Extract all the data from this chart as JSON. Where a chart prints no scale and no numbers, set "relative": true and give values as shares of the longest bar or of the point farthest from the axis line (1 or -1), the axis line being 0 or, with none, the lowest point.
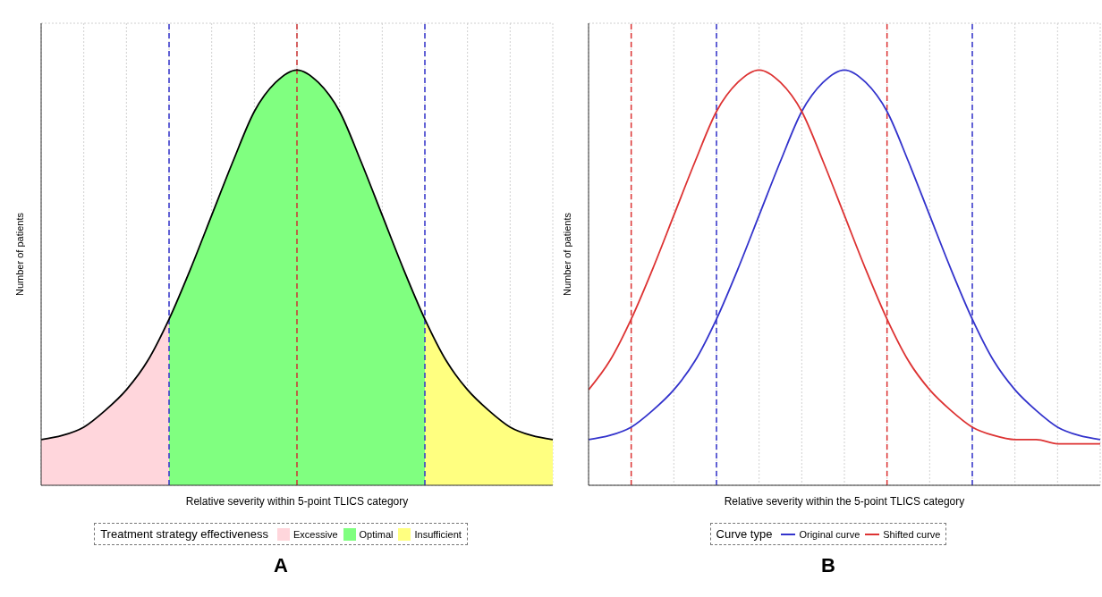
{
  "chart_data": [
    {
      "type": "area",
      "relative": true,
      "xlabel": "Relative severity within 5-point TLICS category",
      "ylabel": "Number of patients",
      "legend_title": "Treatment strategy effectiveness",
      "legend": "bottom",
      "grid": true,
      "marker": "none",
      "annotations": [
        "A"
      ],
      "categories": [
        null,
        null,
        null,
        null,
        null,
        null,
        null,
        null,
        null,
        null,
        null,
        null,
        null,
        null,
        null,
        null,
        null,
        null,
        null,
        null,
        null,
        null,
        null,
        null,
        null
      ],
      "series": [
        {
          "name": "Excessive",
          "color": "#ffd6dc",
          "values": [
            0.11,
            0.12,
            0.14,
            0.18,
            0.23,
            0.3,
            0.4,
            null,
            null,
            null,
            null,
            null,
            null,
            null,
            null,
            null,
            null,
            null,
            null,
            null,
            null,
            null,
            null,
            null,
            null
          ]
        },
        {
          "name": "Optimal",
          "color": "#80ff80",
          "values": [
            null,
            null,
            null,
            null,
            null,
            null,
            0.4,
            0.52,
            0.65,
            0.78,
            0.9,
            0.97,
            1.0,
            0.97,
            0.9,
            0.78,
            0.65,
            0.52,
            0.4,
            null,
            null,
            null,
            null,
            null,
            null
          ]
        },
        {
          "name": "Insufficient",
          "color": "#ffff80",
          "values": [
            null,
            null,
            null,
            null,
            null,
            null,
            null,
            null,
            null,
            null,
            null,
            null,
            null,
            null,
            null,
            null,
            null,
            null,
            0.4,
            0.3,
            0.23,
            0.18,
            0.14,
            0.12,
            0.11
          ]
        },
        {
          "type": "line",
          "color": "#000000",
          "values": [
            0.11,
            0.12,
            0.14,
            0.18,
            0.23,
            0.3,
            0.4,
            0.52,
            0.65,
            0.78,
            0.9,
            0.97,
            1.0,
            0.97,
            0.9,
            0.78,
            0.65,
            0.52,
            0.4,
            0.3,
            0.23,
            0.18,
            0.14,
            0.12,
            0.11
          ]
        }
      ]
    },
    {
      "type": "line",
      "relative": true,
      "xlabel": "Relative severity within the 5-point TLICS category",
      "ylabel": "Number of patients",
      "legend_title": "Curve type",
      "legend": "bottom",
      "grid": true,
      "marker": "none",
      "annotations": [
        "B"
      ],
      "categories": [
        null,
        null,
        null,
        null,
        null,
        null,
        null,
        null,
        null,
        null,
        null,
        null,
        null,
        null,
        null,
        null,
        null,
        null,
        null,
        null,
        null,
        null,
        null,
        null,
        null
      ],
      "series": [
        {
          "name": "Original curve",
          "color": "#3333cc",
          "values": [
            0.11,
            0.12,
            0.14,
            0.18,
            0.23,
            0.3,
            0.4,
            0.52,
            0.65,
            0.78,
            0.9,
            0.97,
            1.0,
            0.97,
            0.9,
            0.78,
            0.65,
            0.52,
            0.4,
            0.3,
            0.23,
            0.18,
            0.14,
            0.12,
            0.11
          ]
        },
        {
          "name": "Shifted curve",
          "color": "#dd3333",
          "values": [
            0.23,
            0.3,
            0.4,
            0.52,
            0.65,
            0.78,
            0.9,
            0.97,
            1.0,
            0.97,
            0.9,
            0.78,
            0.65,
            0.52,
            0.4,
            0.3,
            0.23,
            0.18,
            0.14,
            0.12,
            0.11,
            0.11,
            0.1,
            0.1,
            0.1
          ]
        }
      ]
    }
  ]
}
